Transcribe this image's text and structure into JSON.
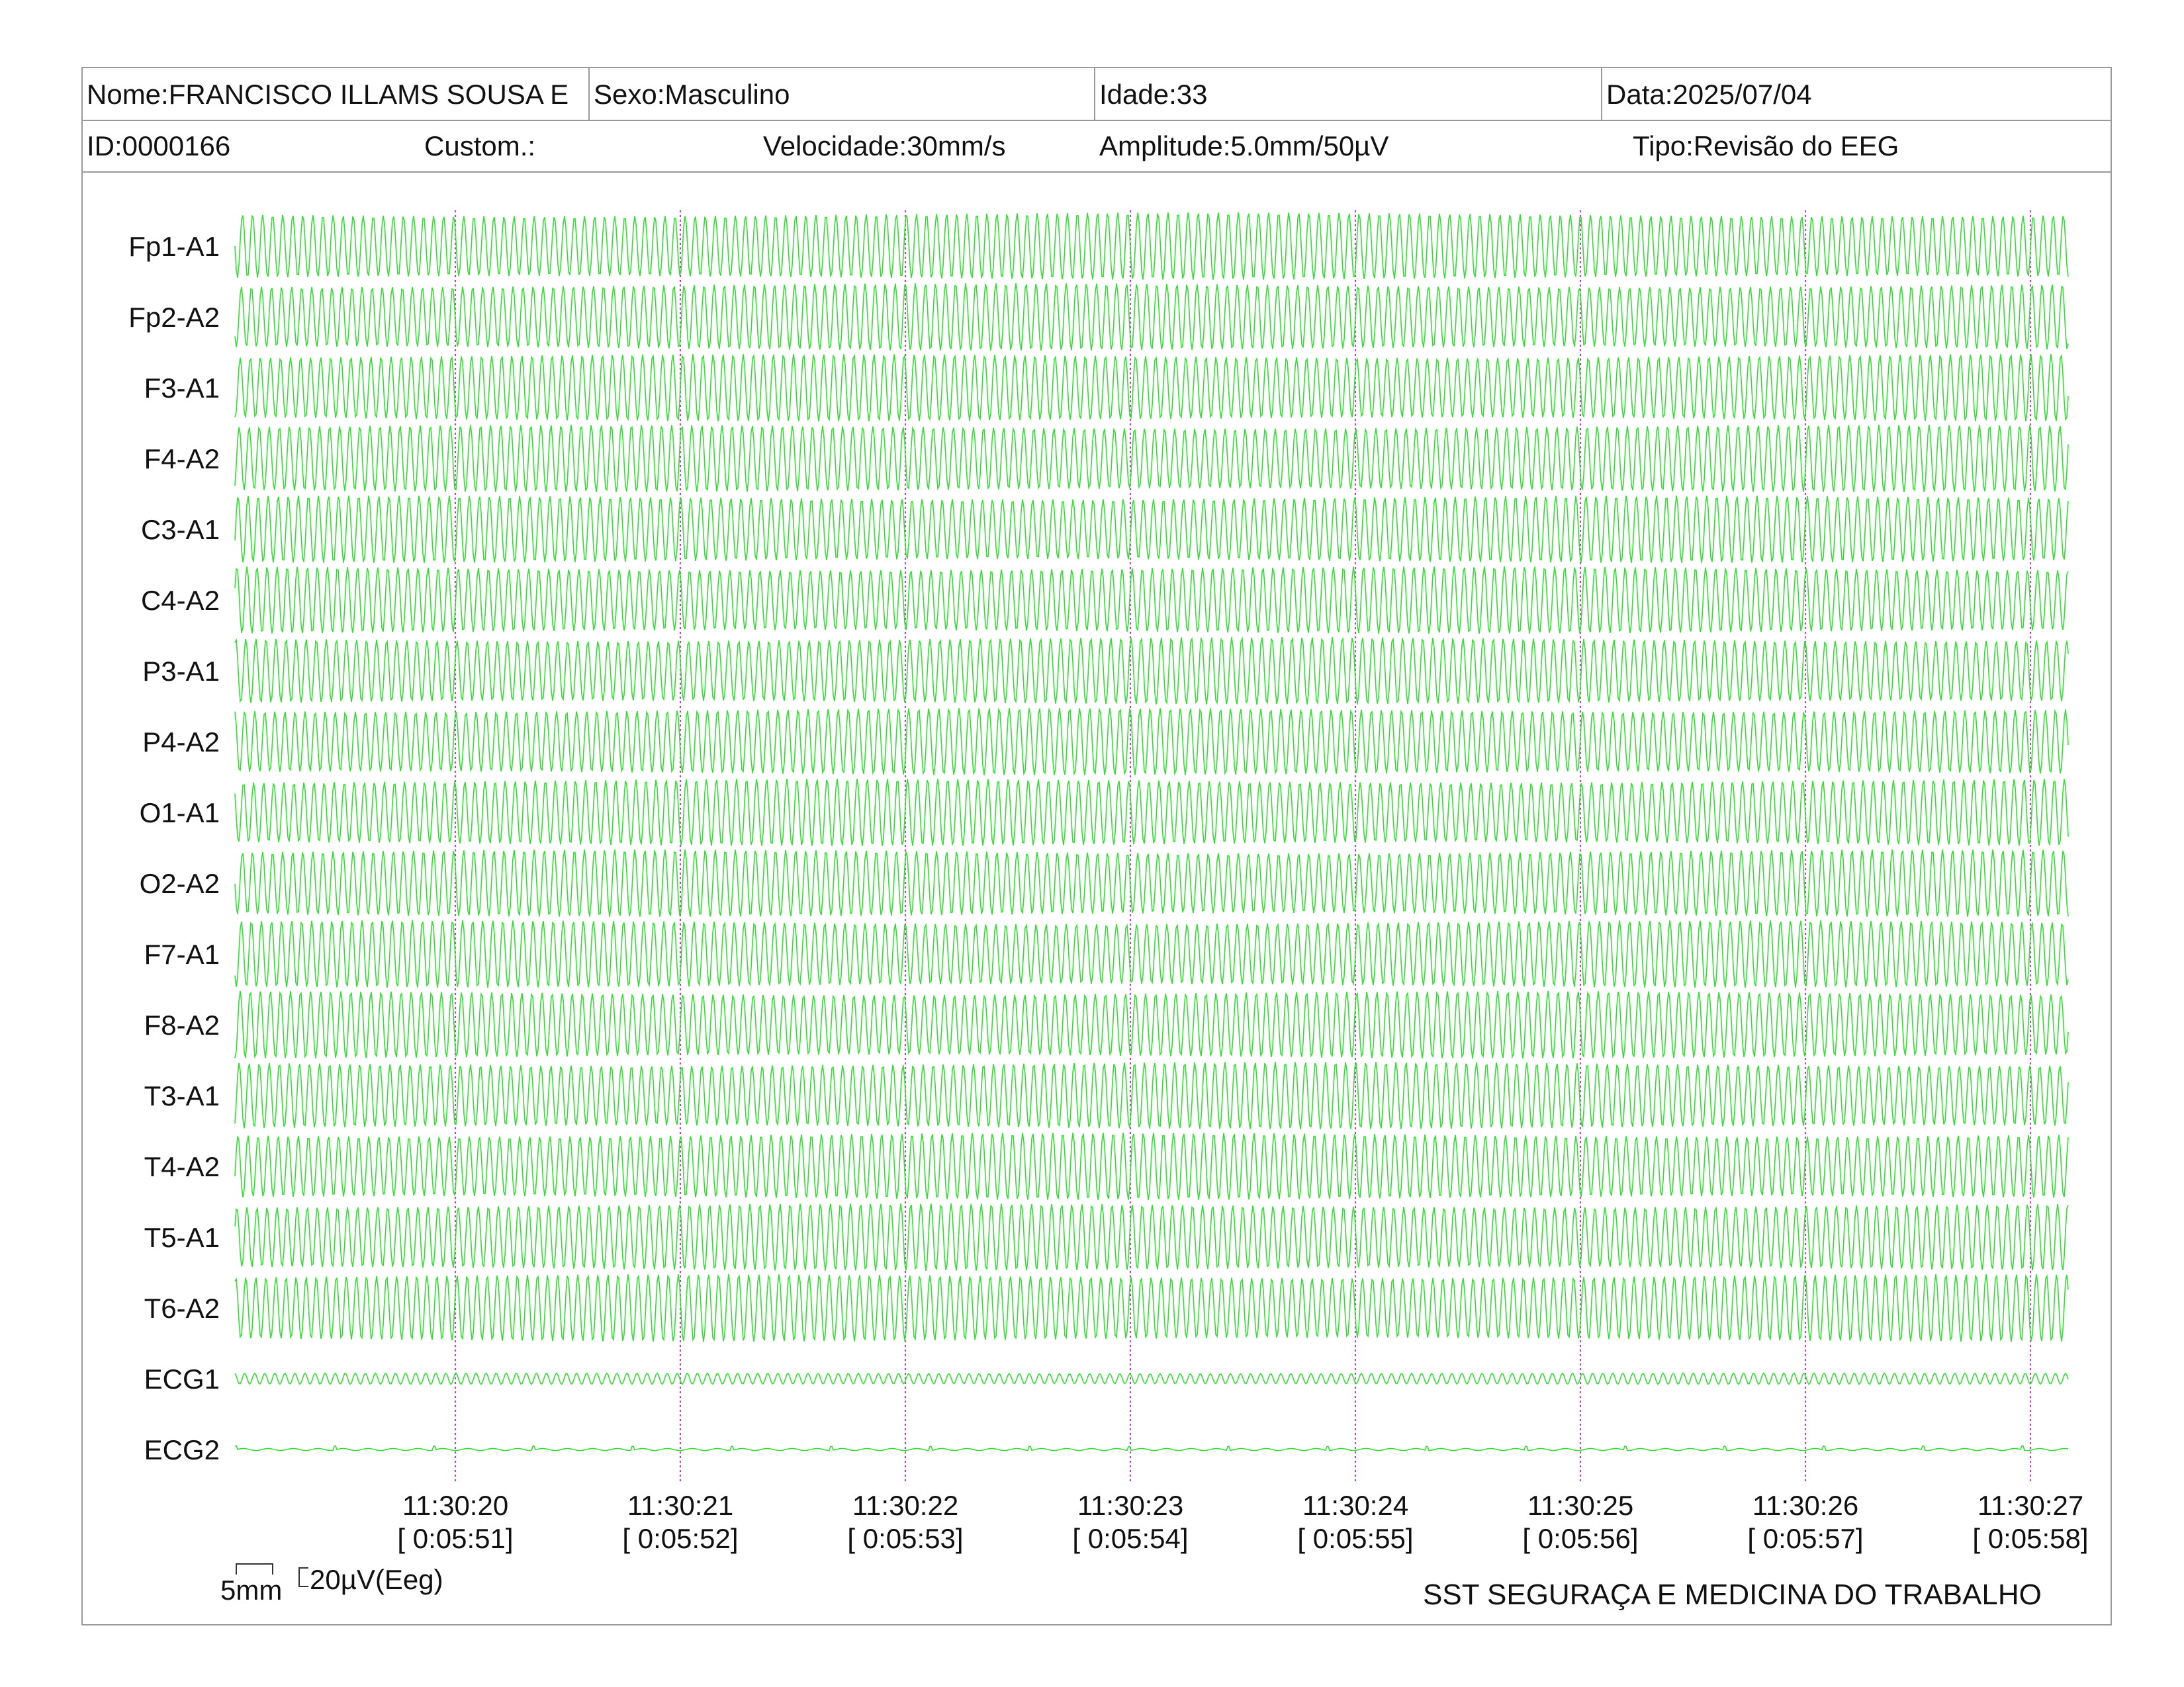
{
  "header": {
    "nome": "Nome:FRANCISCO ILLAMS SOUSA E",
    "sexo": "Sexo:Masculino",
    "idade": "Idade:33",
    "data": "Data:2025/07/04",
    "id": "ID:0000166",
    "custom": "Custom.:",
    "velocidade": "Velocidade:30mm/s",
    "amplitude": "Amplitude:5.0mm/50µV",
    "tipo": "Tipo:Revisão do EEG"
  },
  "channels": [
    "Fp1-A1",
    "Fp2-A2",
    "F3-A1",
    "F4-A2",
    "C3-A1",
    "C4-A2",
    "P3-A1",
    "P4-A2",
    "O1-A1",
    "O2-A2",
    "F7-A1",
    "F8-A2",
    "T3-A1",
    "T4-A2",
    "T5-A1",
    "T6-A2",
    "ECG1",
    "ECG2"
  ],
  "time_markers": [
    {
      "clock": "11:30:20",
      "elapsed": "[ 0:05:51]"
    },
    {
      "clock": "11:30:21",
      "elapsed": "[ 0:05:52]"
    },
    {
      "clock": "11:30:22",
      "elapsed": "[ 0:05:53]"
    },
    {
      "clock": "11:30:23",
      "elapsed": "[ 0:05:54]"
    },
    {
      "clock": "11:30:24",
      "elapsed": "[ 0:05:55]"
    },
    {
      "clock": "11:30:25",
      "elapsed": "[ 0:05:56]"
    },
    {
      "clock": "11:30:26",
      "elapsed": "[ 0:05:57]"
    },
    {
      "clock": "11:30:27",
      "elapsed": "[ 0:05:58]"
    }
  ],
  "scale": {
    "time": "5mm",
    "amplitude": "20µV(Eeg)"
  },
  "footer": {
    "organization": "SST SEGURAÇA E MEDICINA DO TRABALHO"
  },
  "colors": {
    "trace": "#33dd33",
    "marker": "#cc33cc",
    "border": "#9a9a9a"
  }
}
